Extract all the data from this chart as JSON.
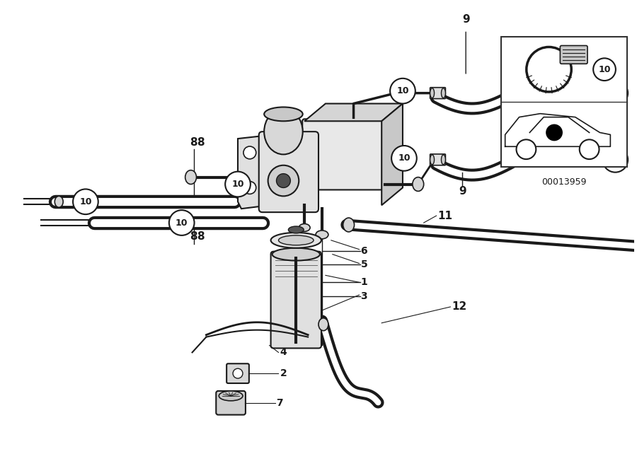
{
  "bg_color": "#ffffff",
  "line_color": "#1a1a1a",
  "fig_width": 9.0,
  "fig_height": 6.35,
  "dpi": 100,
  "part_number": "00013959",
  "inset_bg": "#ffffff",
  "border_color": "#333333"
}
